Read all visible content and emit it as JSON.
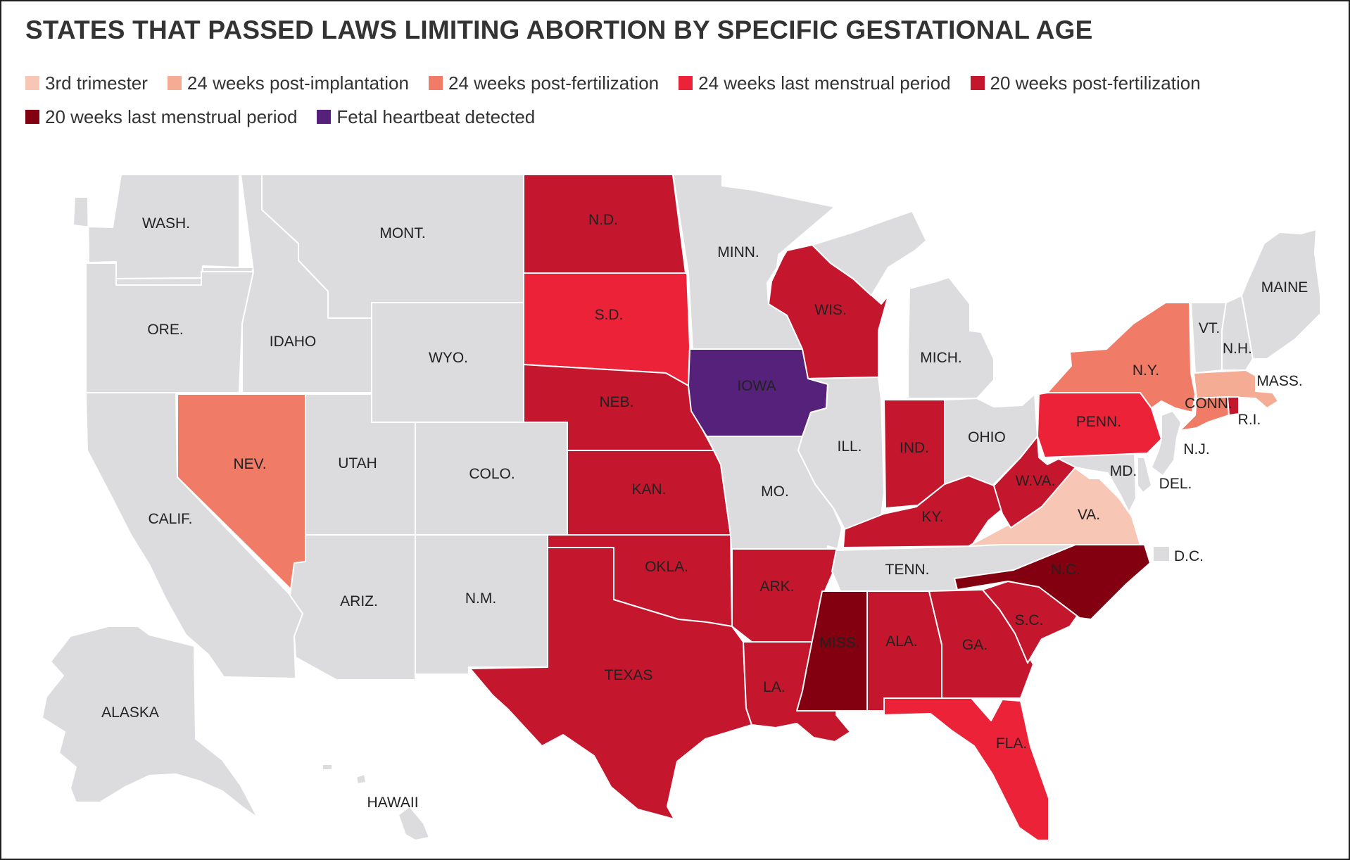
{
  "title": "STATES THAT PASSED LAWS LIMITING ABORTION BY SPECIFIC GESTATIONAL AGE",
  "colors": {
    "no_law": "#dcdcde",
    "third_trimester": "#f7c6b5",
    "wk24_post_implantation": "#f4ac94",
    "wk24_post_fertilization": "#f07c68",
    "wk24_lmp": "#ec2238",
    "wk20_post_fertilization": "#c4162c",
    "wk20_lmp": "#82000f",
    "heartbeat": "#55217a"
  },
  "legend": [
    {
      "label": "3rd trimester",
      "color": "#f7c6b5"
    },
    {
      "label": "24 weeks post-implantation",
      "color": "#f4ac94"
    },
    {
      "label": "24 weeks post-fertilization",
      "color": "#f07c68"
    },
    {
      "label": "24 weeks last menstrual period",
      "color": "#ec2238"
    },
    {
      "label": "20 weeks post-fertilization",
      "color": "#c4162c"
    },
    {
      "label": "20 weeks last menstrual period",
      "color": "#82000f"
    },
    {
      "label": "Fetal heartbeat detected",
      "color": "#55217a"
    }
  ],
  "states": {
    "wa": "WASH.",
    "or": "ORE.",
    "ca": "CALIF.",
    "id": "IDAHO",
    "nv": "NEV.",
    "mt": "MONT.",
    "wy": "WYO.",
    "ut": "UTAH",
    "az": "ARIZ.",
    "co": "COLO.",
    "nm": "N.M.",
    "nd": "N.D.",
    "sd": "S.D.",
    "ne": "NEB.",
    "ks": "KAN.",
    "ok": "OKLA.",
    "tx": "TEXAS",
    "mn": "MINN.",
    "ia": "IOWA",
    "mo": "MO.",
    "ar": "ARK.",
    "la": "LA.",
    "wi": "WIS.",
    "il": "ILL.",
    "ms": "MISS.",
    "mi": "MICH.",
    "in": "IND.",
    "ky": "KY.",
    "tn": "TENN.",
    "al": "ALA.",
    "ga": "GA.",
    "fl": "FLA.",
    "sc": "S.C.",
    "nc": "N.C.",
    "va": "VA.",
    "wv": "W.VA.",
    "oh": "OHIO",
    "pa": "PENN.",
    "ny": "N.Y.",
    "vt": "VT.",
    "nh": "N.H.",
    "me": "MAINE",
    "ma": "MASS.",
    "ct": "CONN.",
    "ri": "R.I.",
    "nj": "N.J.",
    "de": "DEL.",
    "md": "MD.",
    "dc": "D.C.",
    "ak": "ALASKA",
    "hi": "HAWAII"
  }
}
